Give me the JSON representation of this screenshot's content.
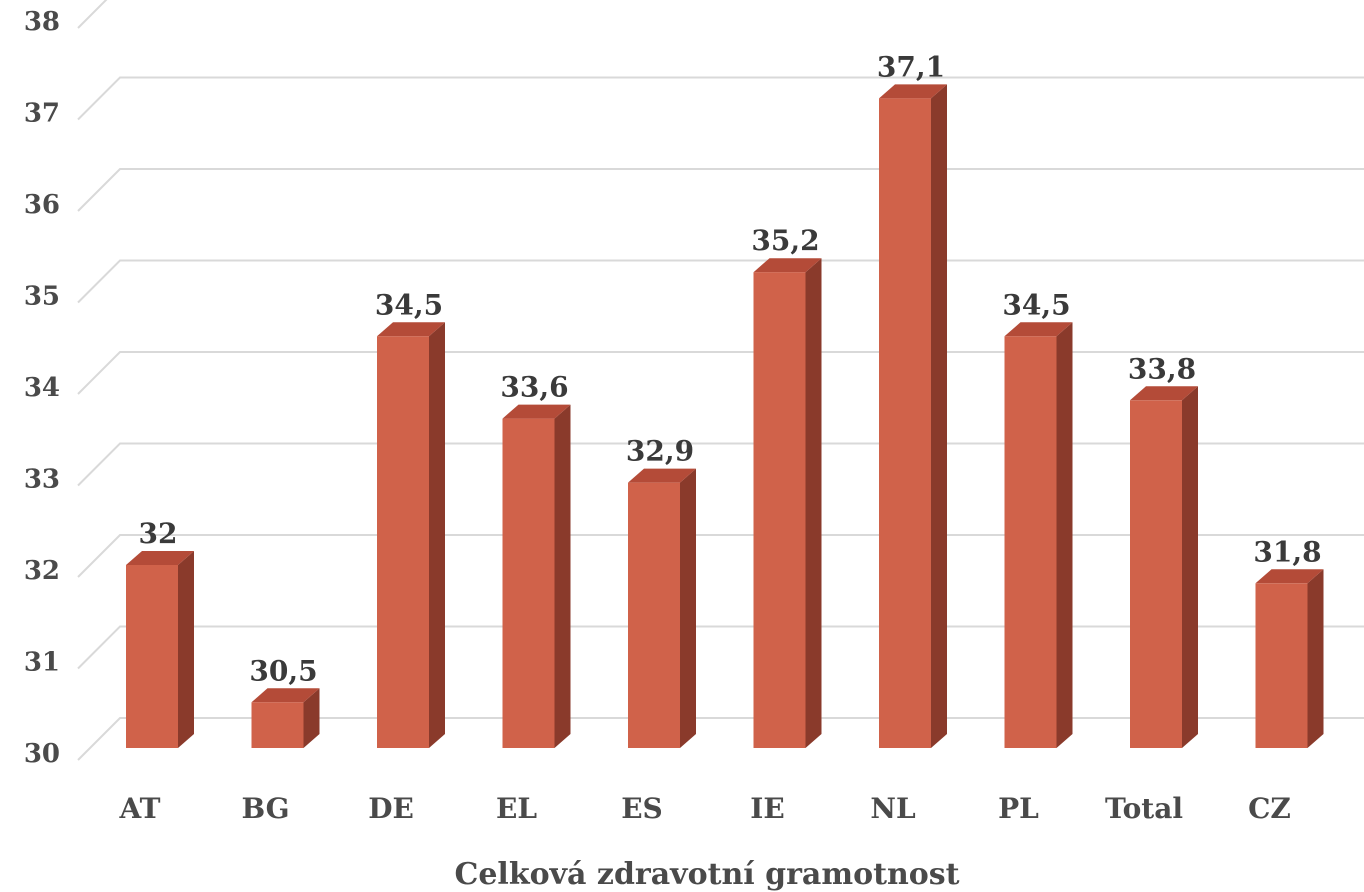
{
  "chart_data": {
    "type": "bar",
    "categories": [
      "AT",
      "BG",
      "DE",
      "EL",
      "ES",
      "IE",
      "NL",
      "PL",
      "Total",
      "CZ"
    ],
    "values": [
      32,
      30.5,
      34.5,
      33.6,
      32.9,
      35.2,
      37.1,
      34.5,
      33.8,
      31.8
    ],
    "data_labels": [
      "32",
      "30,5",
      "34,5",
      "33,6",
      "32,9",
      "35,2",
      "37,1",
      "34,5",
      "33,8",
      "31,8"
    ],
    "yticks": [
      30,
      31,
      32,
      33,
      34,
      35,
      36,
      37,
      38
    ],
    "ylim": [
      30,
      38
    ],
    "xlabel": "Celková zdravotní gramotnost",
    "ylabel": "",
    "title": "",
    "grid": true,
    "legend": "none",
    "bar_color": "#d0624a",
    "bar_side_color": "#8a3a2b",
    "bar_top_color": "#b44b38"
  }
}
